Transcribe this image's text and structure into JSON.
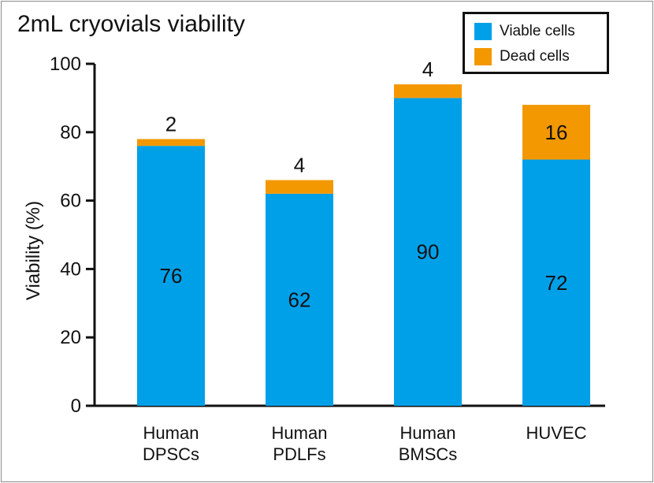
{
  "colors": {
    "viable": "#00a0e9",
    "dead": "#f39800"
  },
  "chart_data": {
    "type": "bar",
    "stacked": true,
    "title": "2mL cryovials viability",
    "xlabel": "",
    "ylabel": "Viability (%)",
    "ylim": [
      0,
      100
    ],
    "yticks": [
      "0",
      "20",
      "40",
      "60",
      "80",
      "100"
    ],
    "categories": [
      [
        "Human",
        "DPSCs"
      ],
      [
        "Human",
        "PDLFs"
      ],
      [
        "Human",
        "BMSCs"
      ],
      [
        "HUVEC"
      ]
    ],
    "series": [
      {
        "name": "Viable cells",
        "color": "#00a0e9",
        "values": [
          76,
          62,
          90,
          72
        ]
      },
      {
        "name": "Dead cells",
        "color": "#f39800",
        "values": [
          2,
          4,
          4,
          16
        ]
      }
    ],
    "legend_position": "top-right",
    "grid": false
  }
}
